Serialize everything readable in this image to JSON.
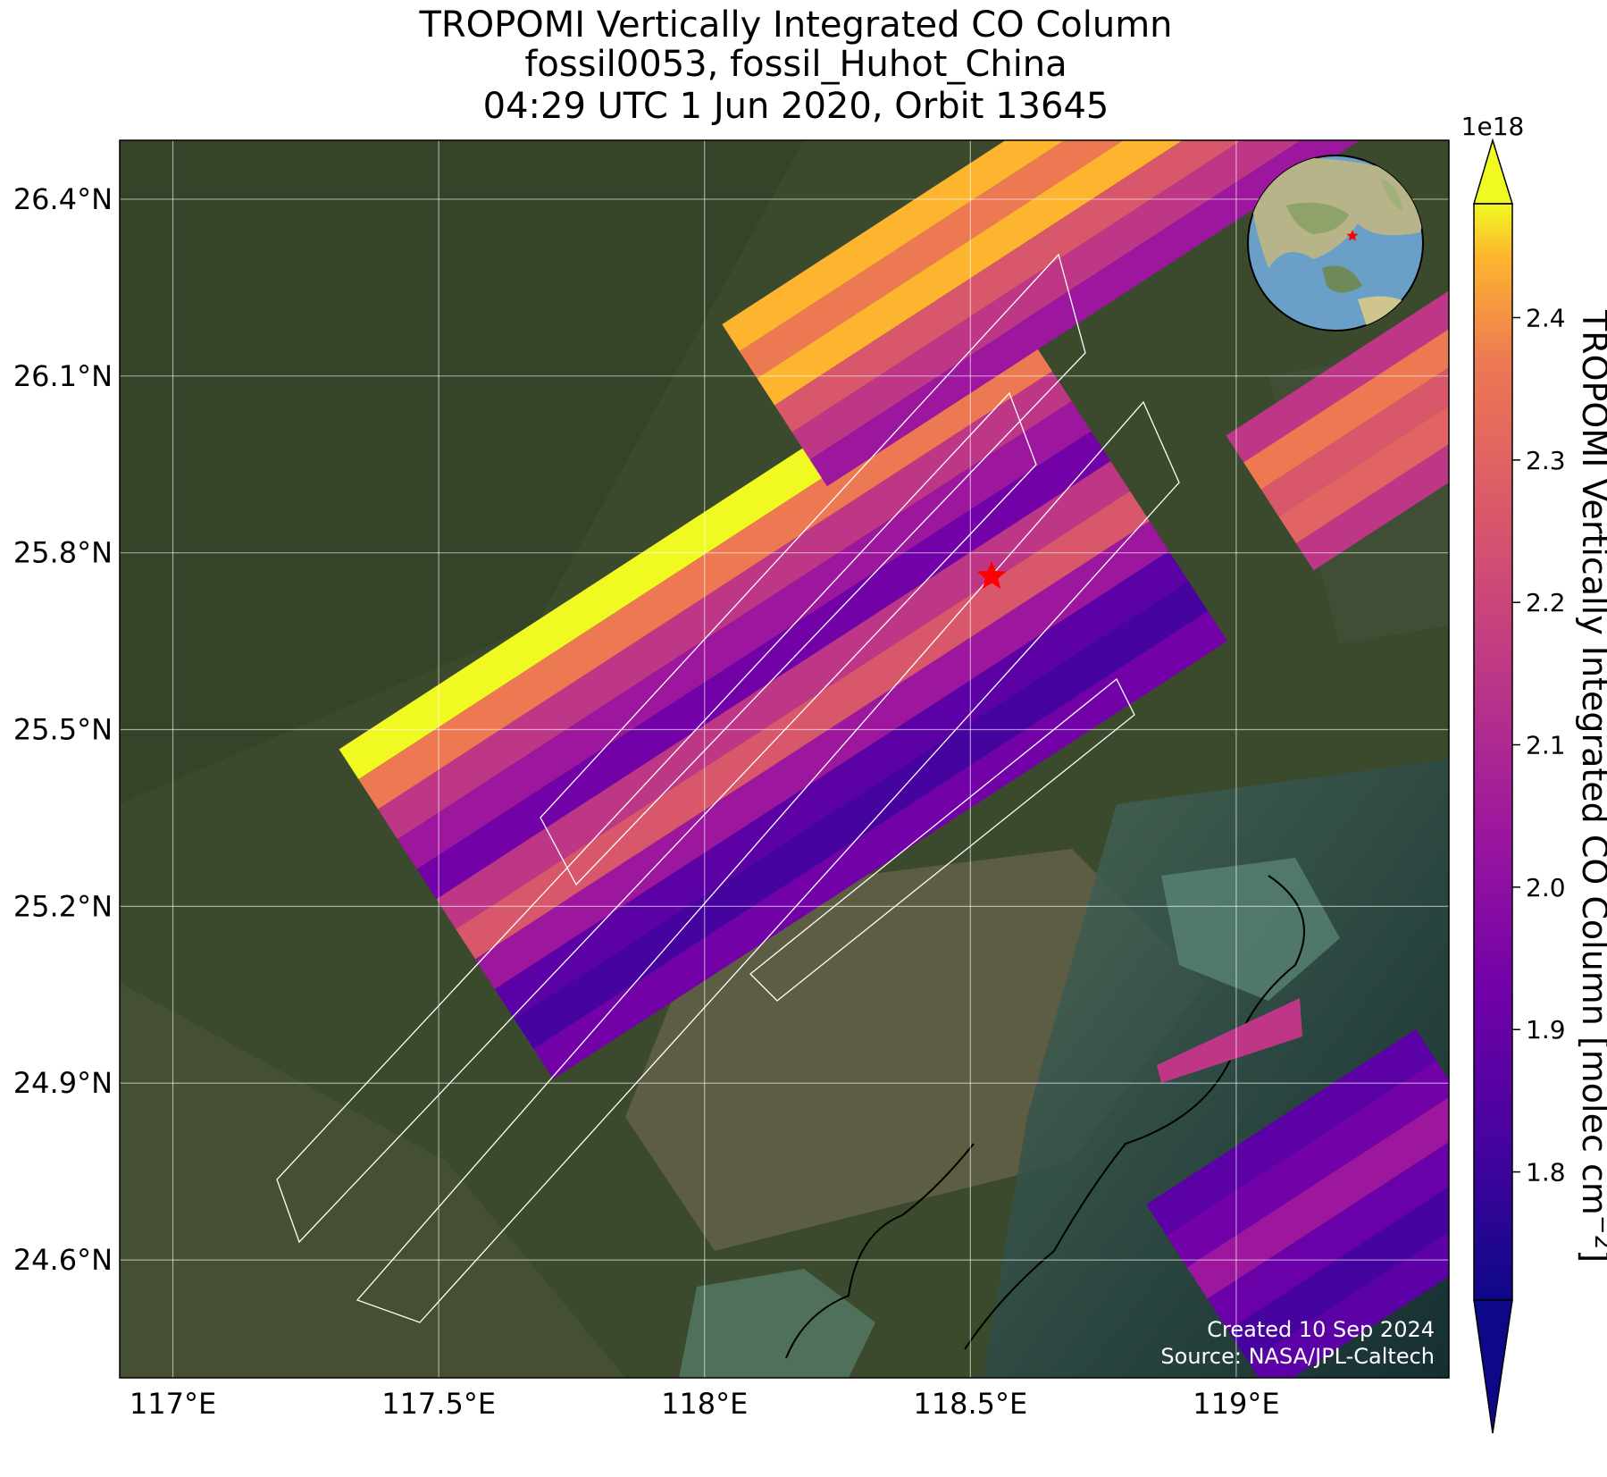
{
  "title": {
    "line1": "TROPOMI Vertically Integrated CO Column",
    "line2": "fossil0053, fossil_Huhot_China",
    "line3": "04:29 UTC 1 Jun 2020, Orbit 13645"
  },
  "map": {
    "lat_range": [
      24.4,
      26.5
    ],
    "lon_range": [
      116.9,
      119.4
    ],
    "lat_ticks": [
      "26.4°N",
      "26.1°N",
      "25.8°N",
      "25.5°N",
      "25.2°N",
      "24.9°N",
      "24.6°N"
    ],
    "lon_ticks": [
      "117°E",
      "117.5°E",
      "118°E",
      "118.5°E",
      "119°E"
    ],
    "gridlines": true,
    "target_marker": {
      "lon": 118.54,
      "lat": 25.76,
      "symbol": "star",
      "color": "#ff0000"
    },
    "inset_globe": {
      "placement": "top-right"
    },
    "basemap": "satellite imagery"
  },
  "colorbar": {
    "label": "TROPOMI Vertically Integrated CO Column [molec cm",
    "label_sup": "−2",
    "label_end": "]",
    "multiplier": "1e18",
    "ticks": [
      "1.8",
      "1.9",
      "2.0",
      "2.1",
      "2.2",
      "2.3",
      "2.4"
    ],
    "range": [
      1.71,
      2.48
    ],
    "colormap": "plasma"
  },
  "credits": {
    "created": "Created 10 Sep 2024",
    "source": "Source: NASA/JPL-Caltech"
  }
}
